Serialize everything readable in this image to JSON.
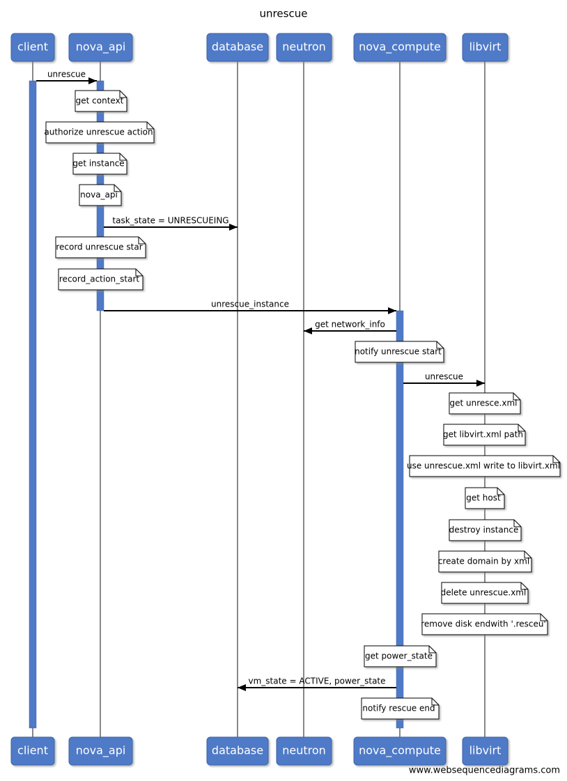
{
  "title": "unrescue",
  "participants": [
    "client",
    "nova_api",
    "database",
    "neutron",
    "nova_compute",
    "libvirt"
  ],
  "messages": [
    "unrescue",
    "task_state = UNRESCUEING",
    "unrescue_instance",
    "get network_info",
    "unrescue",
    "vm_state = ACTIVE, power_state"
  ],
  "notes": [
    "get context",
    "authorize unrescue action",
    "get instance",
    "nova_api",
    "record unrescue star",
    "record_action_start",
    "notify unrescue start",
    "get unresce.xml",
    "get libvirt.xml path",
    "use unrescue.xml write to libvirt.xml",
    "get host",
    "destroy instance",
    "create domain by xml",
    "delete unrescue.xml",
    "remove disk endwith '.resceu'",
    "get power_state",
    "notify rescue end"
  ],
  "footer": "www.websequencediagrams.com"
}
